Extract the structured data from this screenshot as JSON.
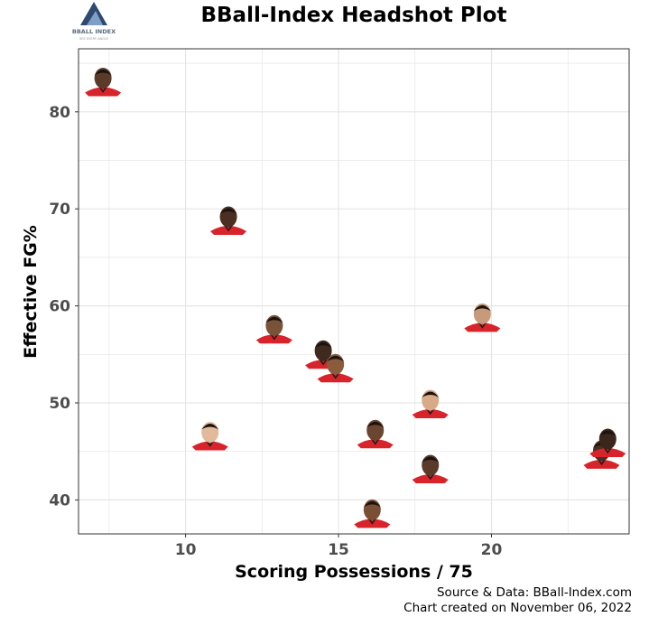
{
  "logo": {
    "text": "BBALL INDEX",
    "tagline": "SEE EVERY ANGLE"
  },
  "chart_data": {
    "type": "scatter",
    "title": "BBall-Index Headshot Plot",
    "xlabel": "Scoring Possessions / 75",
    "ylabel": "Effective FG%",
    "xlim": [
      6.5,
      24.5
    ],
    "ylim": [
      36.5,
      86.5
    ],
    "xticks": [
      10,
      15,
      20
    ],
    "yticks": [
      40,
      50,
      60,
      70,
      80
    ],
    "grid": true,
    "marker": "player-headshot",
    "points": [
      {
        "x": 7.3,
        "y": 83.2
      },
      {
        "x": 11.4,
        "y": 68.9
      },
      {
        "x": 12.9,
        "y": 57.7
      },
      {
        "x": 14.5,
        "y": 55.1
      },
      {
        "x": 14.9,
        "y": 53.7
      },
      {
        "x": 19.7,
        "y": 58.9
      },
      {
        "x": 10.8,
        "y": 46.7
      },
      {
        "x": 16.2,
        "y": 46.9
      },
      {
        "x": 18.0,
        "y": 50.0
      },
      {
        "x": 18.0,
        "y": 43.3
      },
      {
        "x": 16.1,
        "y": 38.7
      },
      {
        "x": 23.6,
        "y": 44.8
      },
      {
        "x": 23.8,
        "y": 46.0
      }
    ],
    "source": "Source & Data: BBall-Index.com",
    "created": "Chart created on November 06, 2022"
  },
  "colors": {
    "jersey": "#d8232a",
    "jersey_dark": "#1a1a1a",
    "grid": "#e6e6e6",
    "logo_mark": "#2f4a6e"
  }
}
